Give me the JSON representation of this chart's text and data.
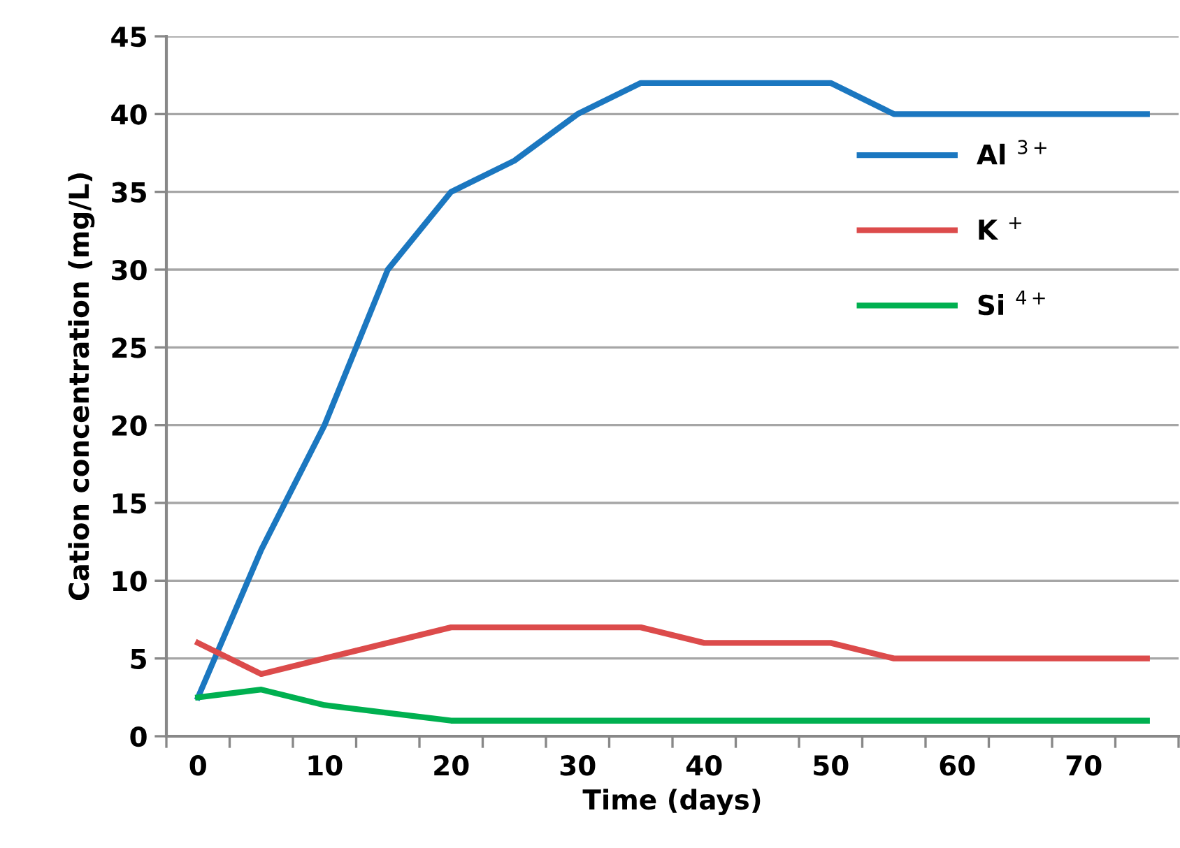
{
  "chart_data": {
    "type": "line",
    "xlabel": "Time (days)",
    "ylabel": "Cation concentration (mg/L)",
    "x": [
      0,
      5,
      10,
      15,
      20,
      25,
      30,
      35,
      40,
      45,
      50,
      55,
      60,
      65,
      70,
      75
    ],
    "series": [
      {
        "name": "Al $^{3+}$",
        "color": "#1b77c0",
        "values": [
          2.5,
          12,
          20,
          30,
          35,
          37,
          40,
          42,
          42,
          42,
          42,
          40,
          40,
          40,
          40,
          40
        ]
      },
      {
        "name": "K $^{+}$",
        "color": "#dc4b4b",
        "values": [
          6,
          4,
          5,
          6,
          7,
          7,
          7,
          7,
          6,
          6,
          6,
          5,
          5,
          5,
          5,
          5
        ]
      },
      {
        "name": "Si $^{4+}$",
        "color": "#00b050",
        "values": [
          2.5,
          3,
          2,
          1.5,
          1,
          1,
          1,
          1,
          1,
          1,
          1,
          1,
          1,
          1,
          1,
          1
        ]
      }
    ],
    "xlim": [
      -2.5,
      77.5
    ],
    "xticks": [
      {
        "value": -2.5,
        "label": null
      },
      0,
      {
        "value": 2.5,
        "label": null
      },
      {
        "value": 7.5,
        "label": null
      },
      10,
      {
        "value": 12.5,
        "label": null
      },
      {
        "value": 17.5,
        "label": null
      },
      20,
      {
        "value": 22.5,
        "label": null
      },
      {
        "value": 27.5,
        "label": null
      },
      30,
      {
        "value": 32.5,
        "label": null
      },
      {
        "value": 37.5,
        "label": null
      },
      40,
      {
        "value": 42.5,
        "label": null
      },
      {
        "value": 47.5,
        "label": null
      },
      50,
      {
        "value": 52.5,
        "label": null
      },
      {
        "value": 57.5,
        "label": null
      },
      60,
      {
        "value": 62.5,
        "label": null
      },
      {
        "value": 67.5,
        "label": null
      },
      70,
      {
        "value": 72.5,
        "label": null
      },
      {
        "value": 77.5,
        "label": null
      }
    ],
    "ylim": [
      0,
      45
    ],
    "yticks": [
      0,
      5,
      10,
      15,
      20,
      25,
      30,
      35,
      40,
      45
    ],
    "grid": "y",
    "legend": "right",
    "marker": "none",
    "line_style": "solid"
  }
}
